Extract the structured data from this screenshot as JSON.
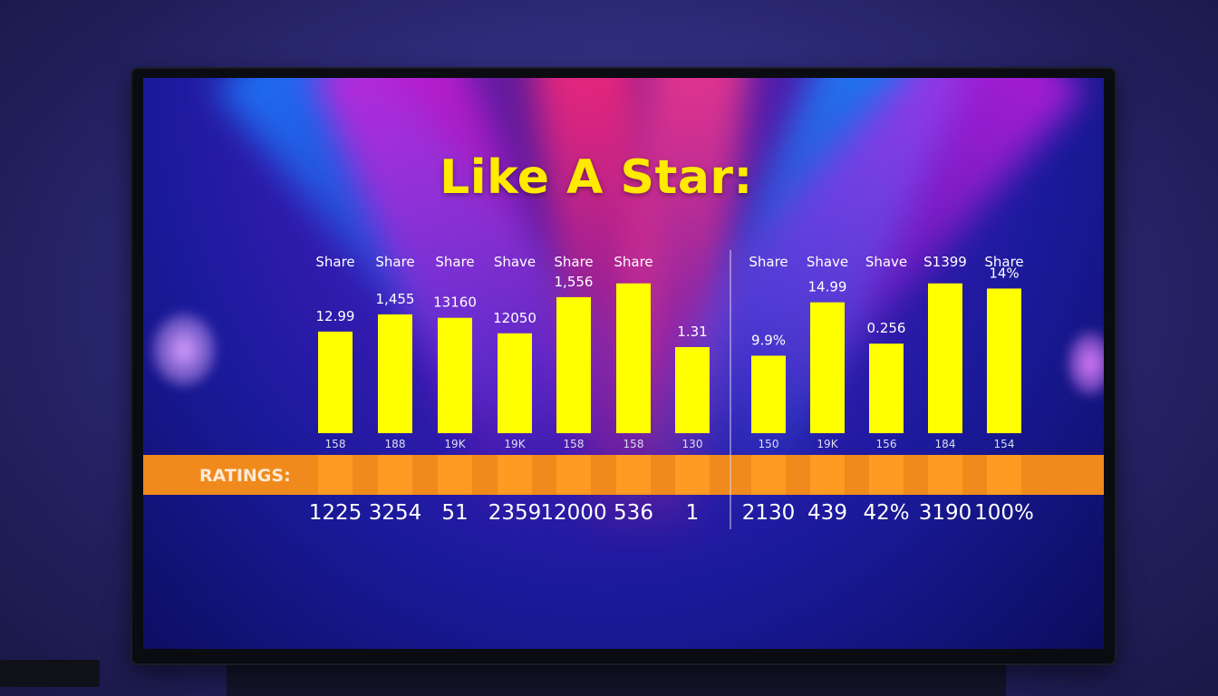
{
  "chart_data": {
    "type": "bar",
    "title": "Like A Star:",
    "row_label": "RATINGS:",
    "colors": {
      "bar": "#ffff00",
      "band": "#f08a1c",
      "band_cell": "#ff9a22",
      "title": "#ffea00"
    },
    "groups": [
      {
        "group": "left",
        "header": "Share",
        "value_label": "12.99",
        "bar_level": 0.59,
        "bottom_label": "158",
        "rating": "1225"
      },
      {
        "group": "left",
        "header": "Share",
        "value_label": "1,455",
        "bar_level": 0.69,
        "bottom_label": "188",
        "rating": "3254"
      },
      {
        "group": "left",
        "header": "Share",
        "value_label": "13160",
        "bar_level": 0.67,
        "bottom_label": "19K",
        "rating": "51"
      },
      {
        "group": "left",
        "header": "Shave",
        "value_label": "12050",
        "bar_level": 0.58,
        "bottom_label": "19K",
        "rating": "2359"
      },
      {
        "group": "left",
        "header": "Share",
        "value_label": "1,556",
        "bar_level": 0.79,
        "bottom_label": "158",
        "rating": "12000"
      },
      {
        "group": "left",
        "header": "Share",
        "value_label": "",
        "bar_level": 0.87,
        "bottom_label": "158",
        "rating": "536"
      },
      {
        "group": "left",
        "header": "",
        "value_label": "1.31",
        "bar_level": 0.5,
        "bottom_label": "130",
        "rating": "1"
      },
      {
        "group": "right",
        "header": "Share",
        "value_label": "9.9%",
        "bar_level": 0.45,
        "bottom_label": "150",
        "rating": "2130"
      },
      {
        "group": "right",
        "header": "Shave",
        "value_label": "14.99",
        "bar_level": 0.76,
        "bottom_label": "19K",
        "rating": "439"
      },
      {
        "group": "right",
        "header": "Shave",
        "value_label": "0.256",
        "bar_level": 0.52,
        "bottom_label": "156",
        "rating": "42%"
      },
      {
        "group": "right",
        "header": "S1399",
        "value_label": "",
        "bar_level": 0.87,
        "bottom_label": "184",
        "rating": "3190"
      },
      {
        "group": "right",
        "header": "Share",
        "value_label": "14%",
        "bar_level": 0.84,
        "bottom_label": "154",
        "rating": "100%"
      }
    ]
  }
}
